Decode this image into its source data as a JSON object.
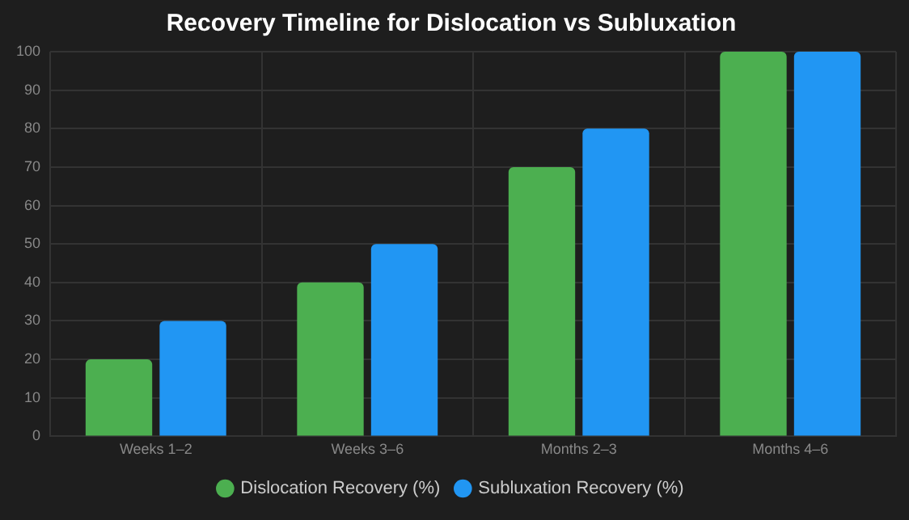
{
  "chart_data": {
    "type": "bar",
    "title": "Recovery Timeline for Dislocation vs Subluxation",
    "categories": [
      "Weeks 1–2",
      "Weeks 3–6",
      "Months 2–3",
      "Months 4–6"
    ],
    "series": [
      {
        "name": "Dislocation Recovery (%)",
        "color": "#4caf50",
        "values": [
          20,
          40,
          70,
          100
        ]
      },
      {
        "name": "Subluxation Recovery (%)",
        "color": "#2196f3",
        "values": [
          30,
          50,
          80,
          100
        ]
      }
    ],
    "ylim": [
      0,
      100
    ],
    "yticks": [
      0,
      10,
      20,
      30,
      40,
      50,
      60,
      70,
      80,
      90,
      100
    ],
    "grid": true,
    "legend": "bottom"
  }
}
